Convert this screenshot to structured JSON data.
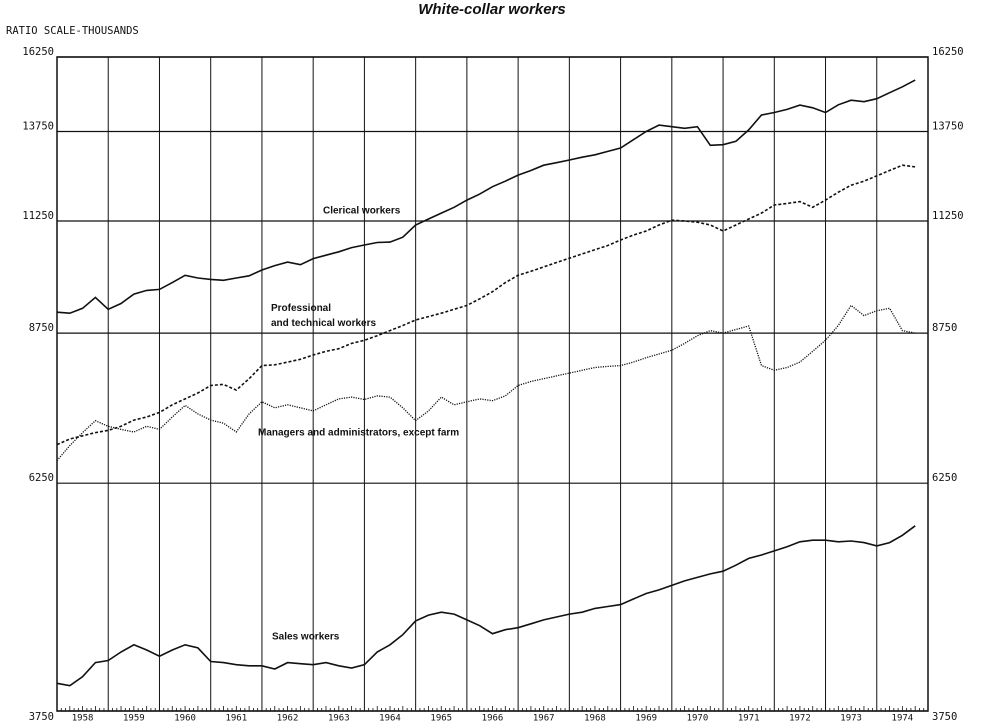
{
  "chart_data": {
    "type": "line",
    "title": "White-collar workers",
    "ylabel": "RATIO SCALE-THOUSANDS",
    "log_scale": true,
    "grid": true,
    "ylim": [
      3750,
      16250
    ],
    "yticks": [
      3750,
      6250,
      8750,
      11250,
      13750,
      16250
    ],
    "xlim": [
      1958,
      1975
    ],
    "categories": [
      "1958",
      "1959",
      "1960",
      "1961",
      "1962",
      "1963",
      "1964",
      "1965",
      "1966",
      "1967",
      "1968",
      "1969",
      "1970",
      "1971",
      "1972",
      "1973",
      "1974"
    ],
    "x": [
      1958,
      1958.25,
      1958.5,
      1958.75,
      1959,
      1959.25,
      1959.5,
      1959.75,
      1960,
      1960.25,
      1960.5,
      1960.75,
      1961,
      1961.25,
      1961.5,
      1961.75,
      1962,
      1962.25,
      1962.5,
      1962.75,
      1963,
      1963.25,
      1963.5,
      1963.75,
      1964,
      1964.25,
      1964.5,
      1964.75,
      1965,
      1965.25,
      1965.5,
      1965.75,
      1966,
      1966.25,
      1966.5,
      1966.75,
      1967,
      1967.25,
      1967.5,
      1967.75,
      1968,
      1968.25,
      1968.5,
      1968.75,
      1969,
      1969.25,
      1969.5,
      1969.75,
      1970,
      1970.25,
      1970.5,
      1970.75,
      1971,
      1971.25,
      1971.5,
      1971.75,
      1972,
      1972.25,
      1972.5,
      1972.75,
      1973,
      1973.25,
      1973.5,
      1973.75,
      1974,
      1974.25,
      1974.5,
      1974.75
    ],
    "series": [
      {
        "name": "Clerical workers",
        "color": "#111111",
        "dash": "solid",
        "values": [
          9170,
          9150,
          9250,
          9480,
          9230,
          9350,
          9550,
          9630,
          9650,
          9800,
          9960,
          9900,
          9870,
          9850,
          9900,
          9950,
          10080,
          10180,
          10260,
          10200,
          10340,
          10420,
          10500,
          10600,
          10660,
          10720,
          10730,
          10850,
          11150,
          11300,
          11450,
          11600,
          11790,
          11950,
          12150,
          12300,
          12470,
          12600,
          12750,
          12820,
          12900,
          12980,
          13050,
          13150,
          13250,
          13500,
          13750,
          13950,
          13900,
          13850,
          13900,
          13330,
          13350,
          13450,
          13800,
          14270,
          14350,
          14450,
          14590,
          14500,
          14350,
          14600,
          14750,
          14700,
          14800,
          15000,
          15200,
          15430
        ]
      },
      {
        "name": "Professional\nand technical workers",
        "color": "#111111",
        "dash": "dashed",
        "values": [
          6815,
          6900,
          6950,
          7000,
          7035,
          7100,
          7200,
          7250,
          7325,
          7450,
          7550,
          7650,
          7780,
          7800,
          7700,
          7900,
          8135,
          8150,
          8200,
          8250,
          8330,
          8400,
          8450,
          8550,
          8610,
          8700,
          8800,
          8900,
          9010,
          9080,
          9150,
          9230,
          9310,
          9450,
          9600,
          9800,
          9960,
          10050,
          10150,
          10250,
          10350,
          10450,
          10550,
          10650,
          10780,
          10900,
          11000,
          11150,
          11270,
          11250,
          11220,
          11150,
          11000,
          11150,
          11300,
          11450,
          11660,
          11700,
          11750,
          11600,
          11790,
          12000,
          12190,
          12300,
          12450,
          12600,
          12750,
          12700
        ]
      },
      {
        "name": "Managers and administrators, except farm",
        "color": "#111111",
        "dash": "dotted",
        "values": [
          6575,
          6800,
          7000,
          7190,
          7100,
          7050,
          7010,
          7100,
          7050,
          7250,
          7440,
          7300,
          7200,
          7150,
          7010,
          7300,
          7500,
          7400,
          7450,
          7400,
          7350,
          7450,
          7550,
          7580,
          7540,
          7600,
          7580,
          7400,
          7190,
          7350,
          7580,
          7450,
          7500,
          7550,
          7520,
          7600,
          7780,
          7850,
          7900,
          7950,
          8000,
          8050,
          8100,
          8120,
          8135,
          8200,
          8280,
          8350,
          8420,
          8550,
          8700,
          8800,
          8750,
          8820,
          8890,
          8135,
          8050,
          8100,
          8200,
          8400,
          8610,
          8900,
          9310,
          9100,
          9200,
          9250,
          8800,
          8750
        ]
      },
      {
        "name": "Sales workers",
        "color": "#111111",
        "dash": "solid",
        "values": [
          3990,
          3970,
          4050,
          4180,
          4200,
          4280,
          4350,
          4300,
          4240,
          4300,
          4350,
          4320,
          4190,
          4180,
          4160,
          4150,
          4150,
          4120,
          4180,
          4170,
          4160,
          4180,
          4150,
          4130,
          4160,
          4280,
          4350,
          4450,
          4590,
          4650,
          4680,
          4660,
          4600,
          4540,
          4460,
          4500,
          4520,
          4560,
          4600,
          4630,
          4660,
          4680,
          4720,
          4740,
          4760,
          4820,
          4880,
          4920,
          4970,
          5020,
          5060,
          5100,
          5130,
          5200,
          5280,
          5320,
          5370,
          5420,
          5480,
          5500,
          5500,
          5480,
          5490,
          5470,
          5430,
          5470,
          5560,
          5680
        ]
      }
    ]
  }
}
